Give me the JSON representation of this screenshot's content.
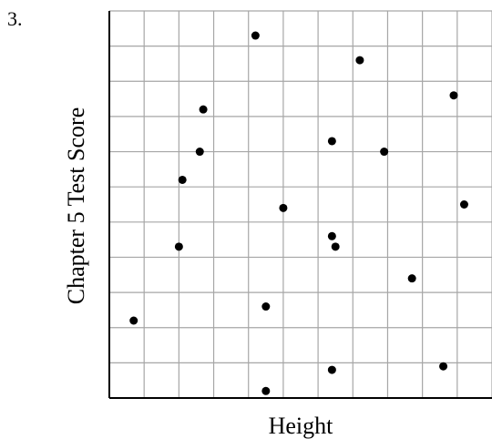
{
  "problem": {
    "number": "3."
  },
  "chart_data": {
    "type": "scatter",
    "title": "",
    "xlabel": "Height",
    "ylabel": "Chapter 5 Test Score",
    "grid": true,
    "xlim": [
      0,
      11
    ],
    "ylim": [
      0,
      11
    ],
    "tick_labels_shown": false,
    "points": [
      {
        "x": 0.7,
        "y": 2.2
      },
      {
        "x": 2.0,
        "y": 4.3
      },
      {
        "x": 2.1,
        "y": 6.2
      },
      {
        "x": 2.6,
        "y": 7.0
      },
      {
        "x": 2.7,
        "y": 8.2
      },
      {
        "x": 4.2,
        "y": 10.3
      },
      {
        "x": 4.5,
        "y": 2.6
      },
      {
        "x": 4.5,
        "y": 0.2
      },
      {
        "x": 5.0,
        "y": 5.4
      },
      {
        "x": 6.4,
        "y": 4.6
      },
      {
        "x": 6.4,
        "y": 7.3
      },
      {
        "x": 6.5,
        "y": 4.3
      },
      {
        "x": 6.4,
        "y": 0.8
      },
      {
        "x": 7.2,
        "y": 9.6
      },
      {
        "x": 7.9,
        "y": 7.0
      },
      {
        "x": 8.7,
        "y": 3.4
      },
      {
        "x": 9.6,
        "y": 0.9
      },
      {
        "x": 9.9,
        "y": 8.6
      },
      {
        "x": 10.2,
        "y": 5.5
      }
    ],
    "colors": {
      "grid": "#a6a6a6",
      "axis": "#000000",
      "point": "#000000"
    }
  }
}
